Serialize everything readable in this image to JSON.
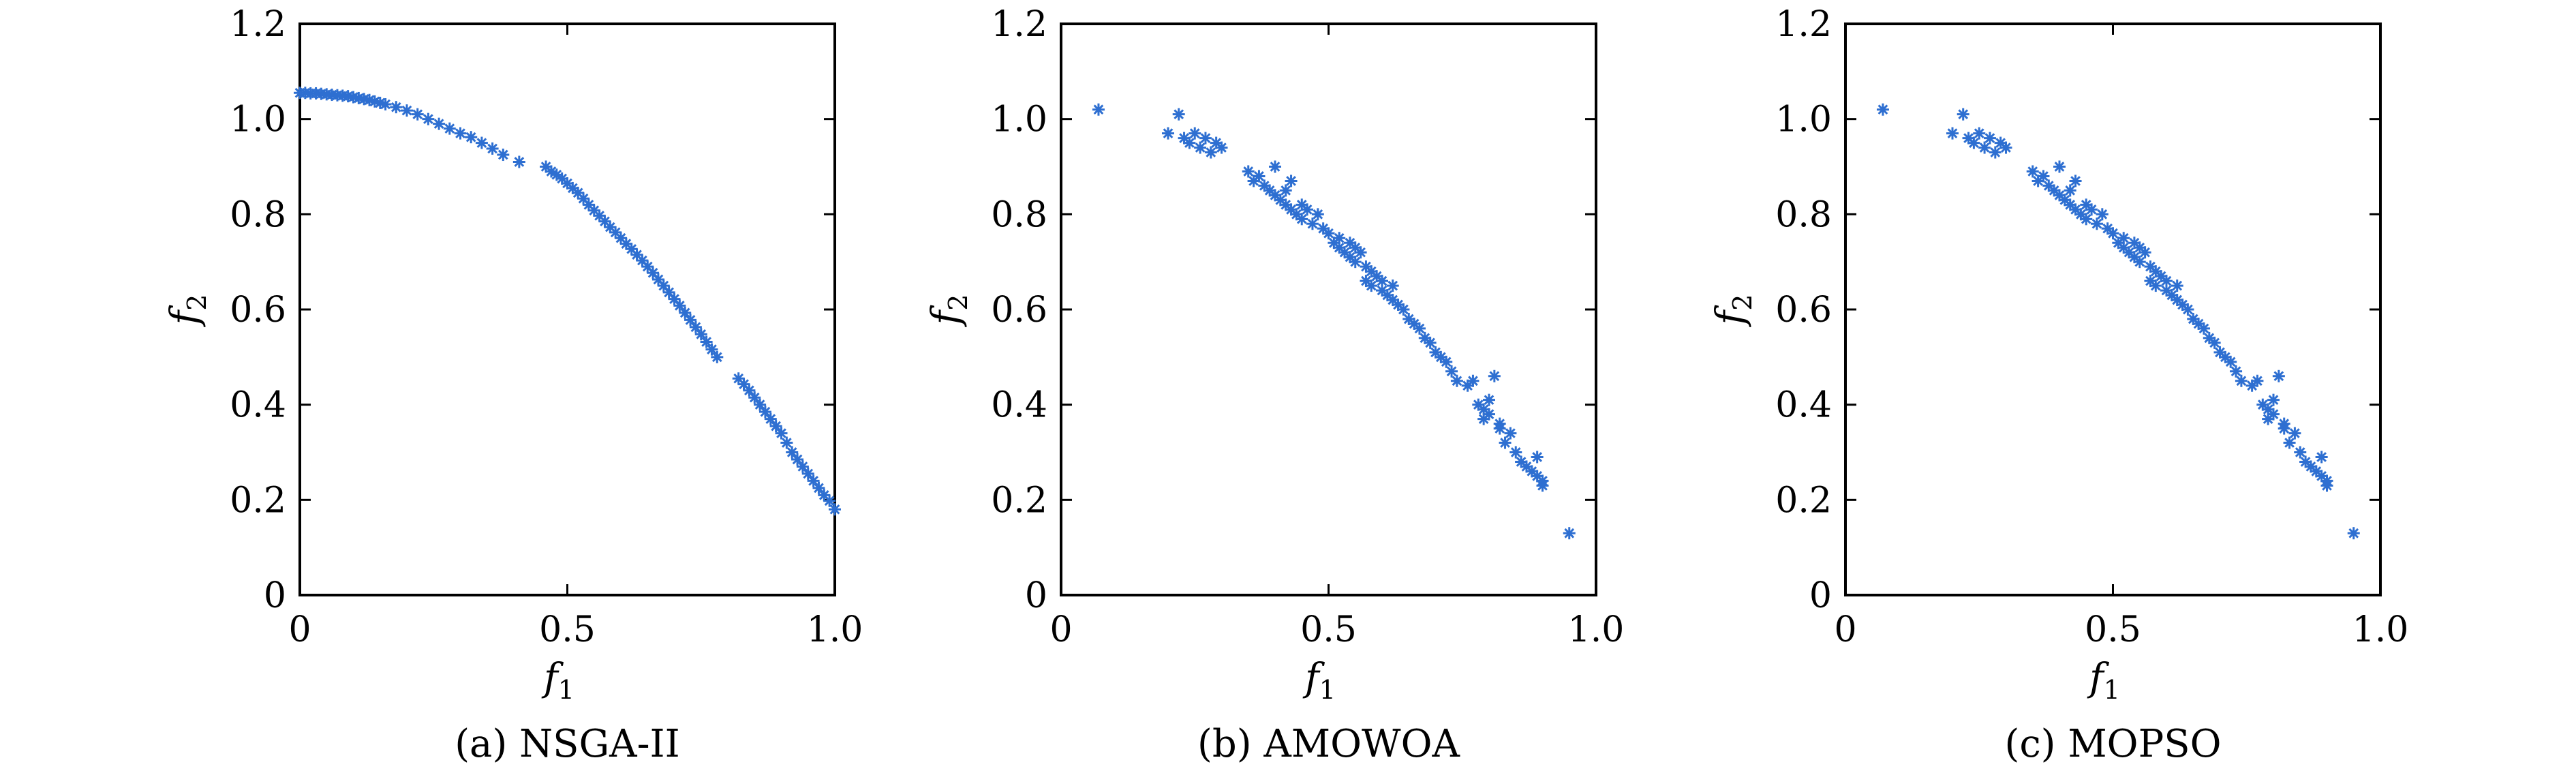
{
  "chart_data": [
    {
      "type": "scatter",
      "caption": "(a) NSGA-II",
      "xlabel_base": "f",
      "xlabel_sub": "1",
      "ylabel_base": "f",
      "ylabel_sub": "2",
      "xlim": [
        0,
        1.0
      ],
      "ylim": [
        0,
        1.2
      ],
      "xticks": [
        "0",
        "0.5",
        "1.0"
      ],
      "yticks": [
        "0",
        "0.2",
        "0.4",
        "0.6",
        "0.8",
        "1.0",
        "1.2"
      ],
      "color": "#2e6fd1",
      "points": [
        [
          0.0,
          1.055
        ],
        [
          0.01,
          1.055
        ],
        [
          0.02,
          1.054
        ],
        [
          0.03,
          1.054
        ],
        [
          0.04,
          1.053
        ],
        [
          0.05,
          1.052
        ],
        [
          0.06,
          1.051
        ],
        [
          0.07,
          1.05
        ],
        [
          0.08,
          1.049
        ],
        [
          0.09,
          1.048
        ],
        [
          0.1,
          1.046
        ],
        [
          0.11,
          1.044
        ],
        [
          0.12,
          1.042
        ],
        [
          0.13,
          1.04
        ],
        [
          0.14,
          1.037
        ],
        [
          0.15,
          1.034
        ],
        [
          0.16,
          1.031
        ],
        [
          0.18,
          1.025
        ],
        [
          0.2,
          1.018
        ],
        [
          0.22,
          1.01
        ],
        [
          0.24,
          1.0
        ],
        [
          0.26,
          0.99
        ],
        [
          0.28,
          0.98
        ],
        [
          0.3,
          0.97
        ],
        [
          0.32,
          0.962
        ],
        [
          0.34,
          0.95
        ],
        [
          0.36,
          0.938
        ],
        [
          0.38,
          0.925
        ],
        [
          0.41,
          0.91
        ],
        [
          0.46,
          0.9
        ],
        [
          0.47,
          0.89
        ],
        [
          0.48,
          0.883
        ],
        [
          0.49,
          0.875
        ],
        [
          0.5,
          0.865
        ],
        [
          0.51,
          0.855
        ],
        [
          0.52,
          0.845
        ],
        [
          0.53,
          0.833
        ],
        [
          0.54,
          0.82
        ],
        [
          0.55,
          0.808
        ],
        [
          0.56,
          0.797
        ],
        [
          0.57,
          0.785
        ],
        [
          0.58,
          0.773
        ],
        [
          0.59,
          0.762
        ],
        [
          0.6,
          0.75
        ],
        [
          0.61,
          0.738
        ],
        [
          0.62,
          0.727
        ],
        [
          0.63,
          0.715
        ],
        [
          0.64,
          0.703
        ],
        [
          0.65,
          0.69
        ],
        [
          0.66,
          0.677
        ],
        [
          0.67,
          0.663
        ],
        [
          0.68,
          0.65
        ],
        [
          0.69,
          0.636
        ],
        [
          0.7,
          0.622
        ],
        [
          0.71,
          0.608
        ],
        [
          0.72,
          0.593
        ],
        [
          0.73,
          0.578
        ],
        [
          0.74,
          0.563
        ],
        [
          0.75,
          0.548
        ],
        [
          0.76,
          0.532
        ],
        [
          0.77,
          0.516
        ],
        [
          0.78,
          0.5
        ],
        [
          0.82,
          0.455
        ],
        [
          0.83,
          0.443
        ],
        [
          0.84,
          0.43
        ],
        [
          0.85,
          0.415
        ],
        [
          0.86,
          0.4
        ],
        [
          0.87,
          0.385
        ],
        [
          0.88,
          0.37
        ],
        [
          0.89,
          0.355
        ],
        [
          0.9,
          0.34
        ],
        [
          0.91,
          0.32
        ],
        [
          0.92,
          0.3
        ],
        [
          0.93,
          0.285
        ],
        [
          0.94,
          0.27
        ],
        [
          0.95,
          0.255
        ],
        [
          0.96,
          0.24
        ],
        [
          0.97,
          0.225
        ],
        [
          0.98,
          0.21
        ],
        [
          0.99,
          0.198
        ],
        [
          1.0,
          0.18
        ]
      ]
    },
    {
      "type": "scatter",
      "caption": "(b) AMOWOA",
      "xlabel_base": "f",
      "xlabel_sub": "1",
      "ylabel_base": "f",
      "ylabel_sub": "2",
      "xlim": [
        0,
        1.0
      ],
      "ylim": [
        0,
        1.2
      ],
      "xticks": [
        "0",
        "0.5",
        "1.0"
      ],
      "yticks": [
        "0",
        "0.2",
        "0.4",
        "0.6",
        "0.8",
        "1.0",
        "1.2"
      ],
      "color": "#2e6fd1",
      "points": [
        [
          0.07,
          1.02
        ],
        [
          0.2,
          0.97
        ],
        [
          0.22,
          1.01
        ],
        [
          0.23,
          0.96
        ],
        [
          0.24,
          0.95
        ],
        [
          0.25,
          0.97
        ],
        [
          0.26,
          0.94
        ],
        [
          0.27,
          0.96
        ],
        [
          0.28,
          0.93
        ],
        [
          0.29,
          0.95
        ],
        [
          0.3,
          0.94
        ],
        [
          0.35,
          0.89
        ],
        [
          0.36,
          0.87
        ],
        [
          0.37,
          0.88
        ],
        [
          0.38,
          0.86
        ],
        [
          0.39,
          0.85
        ],
        [
          0.4,
          0.9
        ],
        [
          0.4,
          0.84
        ],
        [
          0.41,
          0.83
        ],
        [
          0.42,
          0.85
        ],
        [
          0.42,
          0.82
        ],
        [
          0.43,
          0.87
        ],
        [
          0.43,
          0.81
        ],
        [
          0.44,
          0.8
        ],
        [
          0.45,
          0.82
        ],
        [
          0.45,
          0.79
        ],
        [
          0.46,
          0.81
        ],
        [
          0.47,
          0.78
        ],
        [
          0.48,
          0.8
        ],
        [
          0.49,
          0.77
        ],
        [
          0.5,
          0.76
        ],
        [
          0.51,
          0.74
        ],
        [
          0.52,
          0.75
        ],
        [
          0.52,
          0.73
        ],
        [
          0.53,
          0.72
        ],
        [
          0.54,
          0.74
        ],
        [
          0.54,
          0.71
        ],
        [
          0.55,
          0.73
        ],
        [
          0.55,
          0.7
        ],
        [
          0.56,
          0.72
        ],
        [
          0.57,
          0.69
        ],
        [
          0.57,
          0.66
        ],
        [
          0.58,
          0.68
        ],
        [
          0.58,
          0.65
        ],
        [
          0.59,
          0.67
        ],
        [
          0.6,
          0.64
        ],
        [
          0.6,
          0.66
        ],
        [
          0.61,
          0.63
        ],
        [
          0.62,
          0.65
        ],
        [
          0.62,
          0.62
        ],
        [
          0.63,
          0.61
        ],
        [
          0.64,
          0.6
        ],
        [
          0.65,
          0.58
        ],
        [
          0.66,
          0.57
        ],
        [
          0.67,
          0.56
        ],
        [
          0.68,
          0.54
        ],
        [
          0.69,
          0.53
        ],
        [
          0.7,
          0.51
        ],
        [
          0.71,
          0.5
        ],
        [
          0.72,
          0.49
        ],
        [
          0.73,
          0.47
        ],
        [
          0.74,
          0.45
        ],
        [
          0.76,
          0.44
        ],
        [
          0.77,
          0.45
        ],
        [
          0.78,
          0.4
        ],
        [
          0.79,
          0.39
        ],
        [
          0.79,
          0.37
        ],
        [
          0.8,
          0.38
        ],
        [
          0.8,
          0.41
        ],
        [
          0.81,
          0.46
        ],
        [
          0.82,
          0.35
        ],
        [
          0.82,
          0.36
        ],
        [
          0.83,
          0.32
        ],
        [
          0.84,
          0.34
        ],
        [
          0.85,
          0.3
        ],
        [
          0.86,
          0.28
        ],
        [
          0.87,
          0.27
        ],
        [
          0.88,
          0.26
        ],
        [
          0.89,
          0.25
        ],
        [
          0.89,
          0.29
        ],
        [
          0.9,
          0.23
        ],
        [
          0.9,
          0.24
        ],
        [
          0.95,
          0.13
        ]
      ]
    },
    {
      "type": "scatter",
      "caption": "(c) MOPSO",
      "xlabel_base": "f",
      "xlabel_sub": "1",
      "ylabel_base": "f",
      "ylabel_sub": "2",
      "xlim": [
        0,
        1.0
      ],
      "ylim": [
        0,
        1.2
      ],
      "xticks": [
        "0",
        "0.5",
        "1.0"
      ],
      "yticks": [
        "0",
        "0.2",
        "0.4",
        "0.6",
        "0.8",
        "1.0",
        "1.2"
      ],
      "color": "#2e6fd1",
      "points": [
        [
          0.07,
          1.02
        ],
        [
          0.2,
          0.97
        ],
        [
          0.22,
          1.01
        ],
        [
          0.23,
          0.96
        ],
        [
          0.24,
          0.95
        ],
        [
          0.25,
          0.97
        ],
        [
          0.26,
          0.94
        ],
        [
          0.27,
          0.96
        ],
        [
          0.28,
          0.93
        ],
        [
          0.29,
          0.95
        ],
        [
          0.3,
          0.94
        ],
        [
          0.35,
          0.89
        ],
        [
          0.36,
          0.87
        ],
        [
          0.37,
          0.88
        ],
        [
          0.38,
          0.86
        ],
        [
          0.39,
          0.85
        ],
        [
          0.4,
          0.9
        ],
        [
          0.4,
          0.84
        ],
        [
          0.41,
          0.83
        ],
        [
          0.42,
          0.85
        ],
        [
          0.42,
          0.82
        ],
        [
          0.43,
          0.87
        ],
        [
          0.43,
          0.81
        ],
        [
          0.44,
          0.8
        ],
        [
          0.45,
          0.82
        ],
        [
          0.45,
          0.79
        ],
        [
          0.46,
          0.81
        ],
        [
          0.47,
          0.78
        ],
        [
          0.48,
          0.8
        ],
        [
          0.49,
          0.77
        ],
        [
          0.5,
          0.76
        ],
        [
          0.51,
          0.74
        ],
        [
          0.52,
          0.75
        ],
        [
          0.52,
          0.73
        ],
        [
          0.53,
          0.72
        ],
        [
          0.54,
          0.74
        ],
        [
          0.54,
          0.71
        ],
        [
          0.55,
          0.73
        ],
        [
          0.55,
          0.7
        ],
        [
          0.56,
          0.72
        ],
        [
          0.57,
          0.69
        ],
        [
          0.57,
          0.66
        ],
        [
          0.58,
          0.68
        ],
        [
          0.58,
          0.65
        ],
        [
          0.59,
          0.67
        ],
        [
          0.6,
          0.64
        ],
        [
          0.6,
          0.66
        ],
        [
          0.61,
          0.63
        ],
        [
          0.62,
          0.65
        ],
        [
          0.62,
          0.62
        ],
        [
          0.63,
          0.61
        ],
        [
          0.64,
          0.6
        ],
        [
          0.65,
          0.58
        ],
        [
          0.66,
          0.57
        ],
        [
          0.67,
          0.56
        ],
        [
          0.68,
          0.54
        ],
        [
          0.69,
          0.53
        ],
        [
          0.7,
          0.51
        ],
        [
          0.71,
          0.5
        ],
        [
          0.72,
          0.49
        ],
        [
          0.73,
          0.47
        ],
        [
          0.74,
          0.45
        ],
        [
          0.76,
          0.44
        ],
        [
          0.77,
          0.45
        ],
        [
          0.78,
          0.4
        ],
        [
          0.79,
          0.39
        ],
        [
          0.79,
          0.37
        ],
        [
          0.8,
          0.38
        ],
        [
          0.8,
          0.41
        ],
        [
          0.81,
          0.46
        ],
        [
          0.82,
          0.35
        ],
        [
          0.82,
          0.36
        ],
        [
          0.83,
          0.32
        ],
        [
          0.84,
          0.34
        ],
        [
          0.85,
          0.3
        ],
        [
          0.86,
          0.28
        ],
        [
          0.87,
          0.27
        ],
        [
          0.88,
          0.26
        ],
        [
          0.89,
          0.25
        ],
        [
          0.89,
          0.29
        ],
        [
          0.9,
          0.23
        ],
        [
          0.9,
          0.24
        ],
        [
          0.95,
          0.13
        ]
      ]
    }
  ]
}
